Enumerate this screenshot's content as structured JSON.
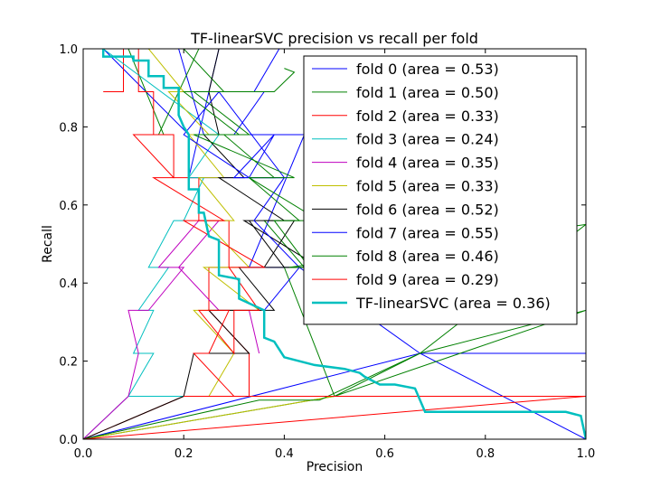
{
  "chart_data": {
    "type": "line",
    "title": "TF-linearSVC precision vs recall per fold",
    "xlabel": "Precision",
    "ylabel": "Recall",
    "xlim": [
      0.0,
      1.0
    ],
    "ylim": [
      0.0,
      1.0
    ],
    "xticks": [
      "0.0",
      "0.2",
      "0.4",
      "0.6",
      "0.8",
      "1.0"
    ],
    "yticks": [
      "0.0",
      "0.2",
      "0.4",
      "0.6",
      "0.8",
      "1.0"
    ],
    "grid": false,
    "legend_position": "top-right",
    "series": [
      {
        "name": "fold 0 (area = 0.53)",
        "color": "#0000ff",
        "lw": 1,
        "x": [
          0,
          0.67,
          1.0,
          1.0,
          0.67,
          0.43,
          0.33,
          0.44,
          0.3,
          0.36,
          0.27,
          0.4,
          0.21,
          0.27,
          0.19,
          0.24,
          0.21,
          0.04
        ],
        "y": [
          0,
          0.22,
          0.22,
          0.0,
          0.22,
          0.44,
          0.44,
          0.78,
          0.78,
          0.89,
          0.89,
          0.67,
          0.67,
          1.0,
          1.0,
          0.78,
          0.78,
          1.0
        ]
      },
      {
        "name": "fold 1 (area = 0.50)",
        "color": "#008000",
        "lw": 1,
        "x": [
          0,
          0.5,
          0.67,
          1.0,
          0.5,
          0.4,
          0.44,
          0.36,
          0.43,
          0.33,
          0.38,
          0.28,
          0.33,
          0.22,
          0.28,
          0.2,
          0.23,
          0.15,
          0.16,
          0.09
        ],
        "y": [
          0,
          0.11,
          0.22,
          0.33,
          0.11,
          0.44,
          0.44,
          0.56,
          0.56,
          0.67,
          0.67,
          0.78,
          0.78,
          0.89,
          0.89,
          1.0,
          1.0,
          0.78,
          0.78,
          1.0
        ]
      },
      {
        "name": "fold 2 (area = 0.33)",
        "color": "#ff0000",
        "lw": 1,
        "x": [
          0,
          0.2,
          0.33,
          0.33,
          0.25,
          0.25,
          0.29,
          0.29,
          0.23,
          0.23,
          0.18,
          0.18,
          0.14,
          0.14,
          0.11,
          0.11,
          0.08,
          0.08,
          0.04
        ],
        "y": [
          0,
          0.11,
          0.11,
          0.22,
          0.33,
          0.44,
          0.44,
          0.56,
          0.56,
          0.67,
          0.67,
          0.78,
          0.78,
          0.89,
          0.89,
          1.0,
          1.0,
          0.89,
          0.89
        ]
      },
      {
        "name": "fold 3 (area = 0.24)",
        "color": "#00bfbf",
        "lw": 1,
        "x": [
          0,
          0.09,
          0.5,
          0.09,
          0.14,
          0.1,
          0.14,
          0.11,
          0.17,
          0.13,
          0.18,
          0.2,
          0.24,
          0.21,
          0.27,
          0.04
        ],
        "y": [
          0,
          0.11,
          0.11,
          0.11,
          0.22,
          0.22,
          0.33,
          0.33,
          0.44,
          0.44,
          0.56,
          0.56,
          0.67,
          0.67,
          0.78,
          1.0
        ]
      },
      {
        "name": "fold 4 (area = 0.35)",
        "color": "#bf00bf",
        "lw": 1,
        "x": [
          0,
          0.09,
          0.11,
          0.09,
          0.13,
          0.2,
          0.19,
          0.27,
          0.23,
          0.15,
          0.19,
          0.27,
          0.33,
          0.35
        ],
        "y": [
          0,
          0.11,
          0.22,
          0.33,
          0.33,
          0.44,
          0.44,
          0.56,
          0.56,
          0.44,
          0.44,
          0.33,
          0.33,
          0.22
        ]
      },
      {
        "name": "fold 5 (area = 0.33)",
        "color": "#bfbf00",
        "lw": 1,
        "x": [
          0,
          0.5,
          0.25,
          0.3,
          0.22,
          0.35,
          0.24,
          0.33,
          0.24,
          0.3,
          0.23,
          0.28,
          0.21,
          0.25,
          0.17,
          0.2,
          0.13,
          0.18
        ],
        "y": [
          0,
          0.11,
          0.11,
          0.22,
          0.33,
          0.33,
          0.44,
          0.44,
          0.56,
          0.56,
          0.67,
          0.67,
          0.78,
          0.78,
          0.89,
          0.89,
          1.0,
          1.0
        ]
      },
      {
        "name": "fold 6 (area = 0.52)",
        "color": "#000000",
        "lw": 1,
        "x": [
          0,
          0.2,
          0.22,
          0.33,
          0.25,
          0.38,
          0.31,
          0.4,
          0.33,
          0.42,
          0.36,
          0.47,
          0.32,
          0.4,
          0.27,
          0.32,
          0.24,
          0.27,
          0.25,
          0.27
        ],
        "y": [
          0,
          0.11,
          0.22,
          0.22,
          0.33,
          0.33,
          0.44,
          0.44,
          0.56,
          0.56,
          0.44,
          0.44,
          0.56,
          0.56,
          0.67,
          0.67,
          0.78,
          0.78,
          0.89,
          1.0
        ]
      },
      {
        "name": "fold 7 (area = 0.55)",
        "color": "#0000ff",
        "lw": 1,
        "x": [
          0.36,
          0.43,
          0.34,
          0.4,
          0.3,
          0.38,
          0.33,
          0.2,
          0.27,
          0.34,
          0.39,
          0.47
        ],
        "y": [
          0.33,
          0.44,
          0.56,
          0.67,
          0.67,
          0.78,
          0.67,
          0.78,
          0.89,
          0.89,
          1.0,
          1.0
        ]
      },
      {
        "name": "fold 8 (area = 0.46)",
        "color": "#008000",
        "lw": 1,
        "x": [
          0,
          0.35,
          0.47,
          0.67,
          1.0,
          0.41,
          0.45,
          0.38,
          0.47,
          0.33,
          0.42,
          0.22,
          0.31,
          0.2,
          0.25,
          0.38,
          0.42,
          0.4
        ],
        "y": [
          0,
          0.1,
          0.1,
          0.22,
          0.55,
          0.44,
          0.44,
          0.56,
          0.56,
          0.67,
          0.67,
          0.78,
          0.78,
          0.89,
          0.89,
          0.89,
          0.94,
          0.95
        ]
      },
      {
        "name": "fold 9 (area = 0.29)",
        "color": "#ff0000",
        "lw": 1,
        "x": [
          0,
          1.0,
          0.25,
          0.2,
          0.3,
          0.22,
          0.25,
          0.29,
          0.23,
          0.3,
          0.3,
          0.35,
          0.29,
          0.36,
          0.2,
          0.28,
          0.14,
          0.18,
          0.1,
          0.14
        ],
        "y": [
          0,
          0.11,
          0.11,
          0.11,
          0.11,
          0.22,
          0.22,
          0.33,
          0.33,
          0.22,
          0.33,
          0.33,
          0.44,
          0.44,
          0.56,
          0.56,
          0.67,
          0.67,
          0.78,
          0.78
        ]
      },
      {
        "name": "TF-linearSVC (area = 0.36)",
        "color": "#00bfbf",
        "lw": 2.5,
        "x": [
          0.04,
          0.04,
          0.1,
          0.1,
          0.13,
          0.13,
          0.16,
          0.16,
          0.19,
          0.19,
          0.2,
          0.21,
          0.21,
          0.23,
          0.23,
          0.24,
          0.25,
          0.27,
          0.27,
          0.31,
          0.31,
          0.36,
          0.36,
          0.38,
          0.4,
          0.46,
          0.52,
          0.55,
          0.56,
          0.59,
          0.62,
          0.66,
          0.68,
          0.96,
          0.99,
          1.0
        ],
        "y": [
          1.0,
          0.98,
          0.98,
          0.97,
          0.97,
          0.93,
          0.93,
          0.9,
          0.9,
          0.83,
          0.8,
          0.78,
          0.64,
          0.64,
          0.58,
          0.58,
          0.52,
          0.51,
          0.42,
          0.41,
          0.36,
          0.33,
          0.26,
          0.25,
          0.21,
          0.19,
          0.18,
          0.17,
          0.16,
          0.14,
          0.14,
          0.13,
          0.07,
          0.07,
          0.06,
          0.0
        ]
      }
    ]
  }
}
